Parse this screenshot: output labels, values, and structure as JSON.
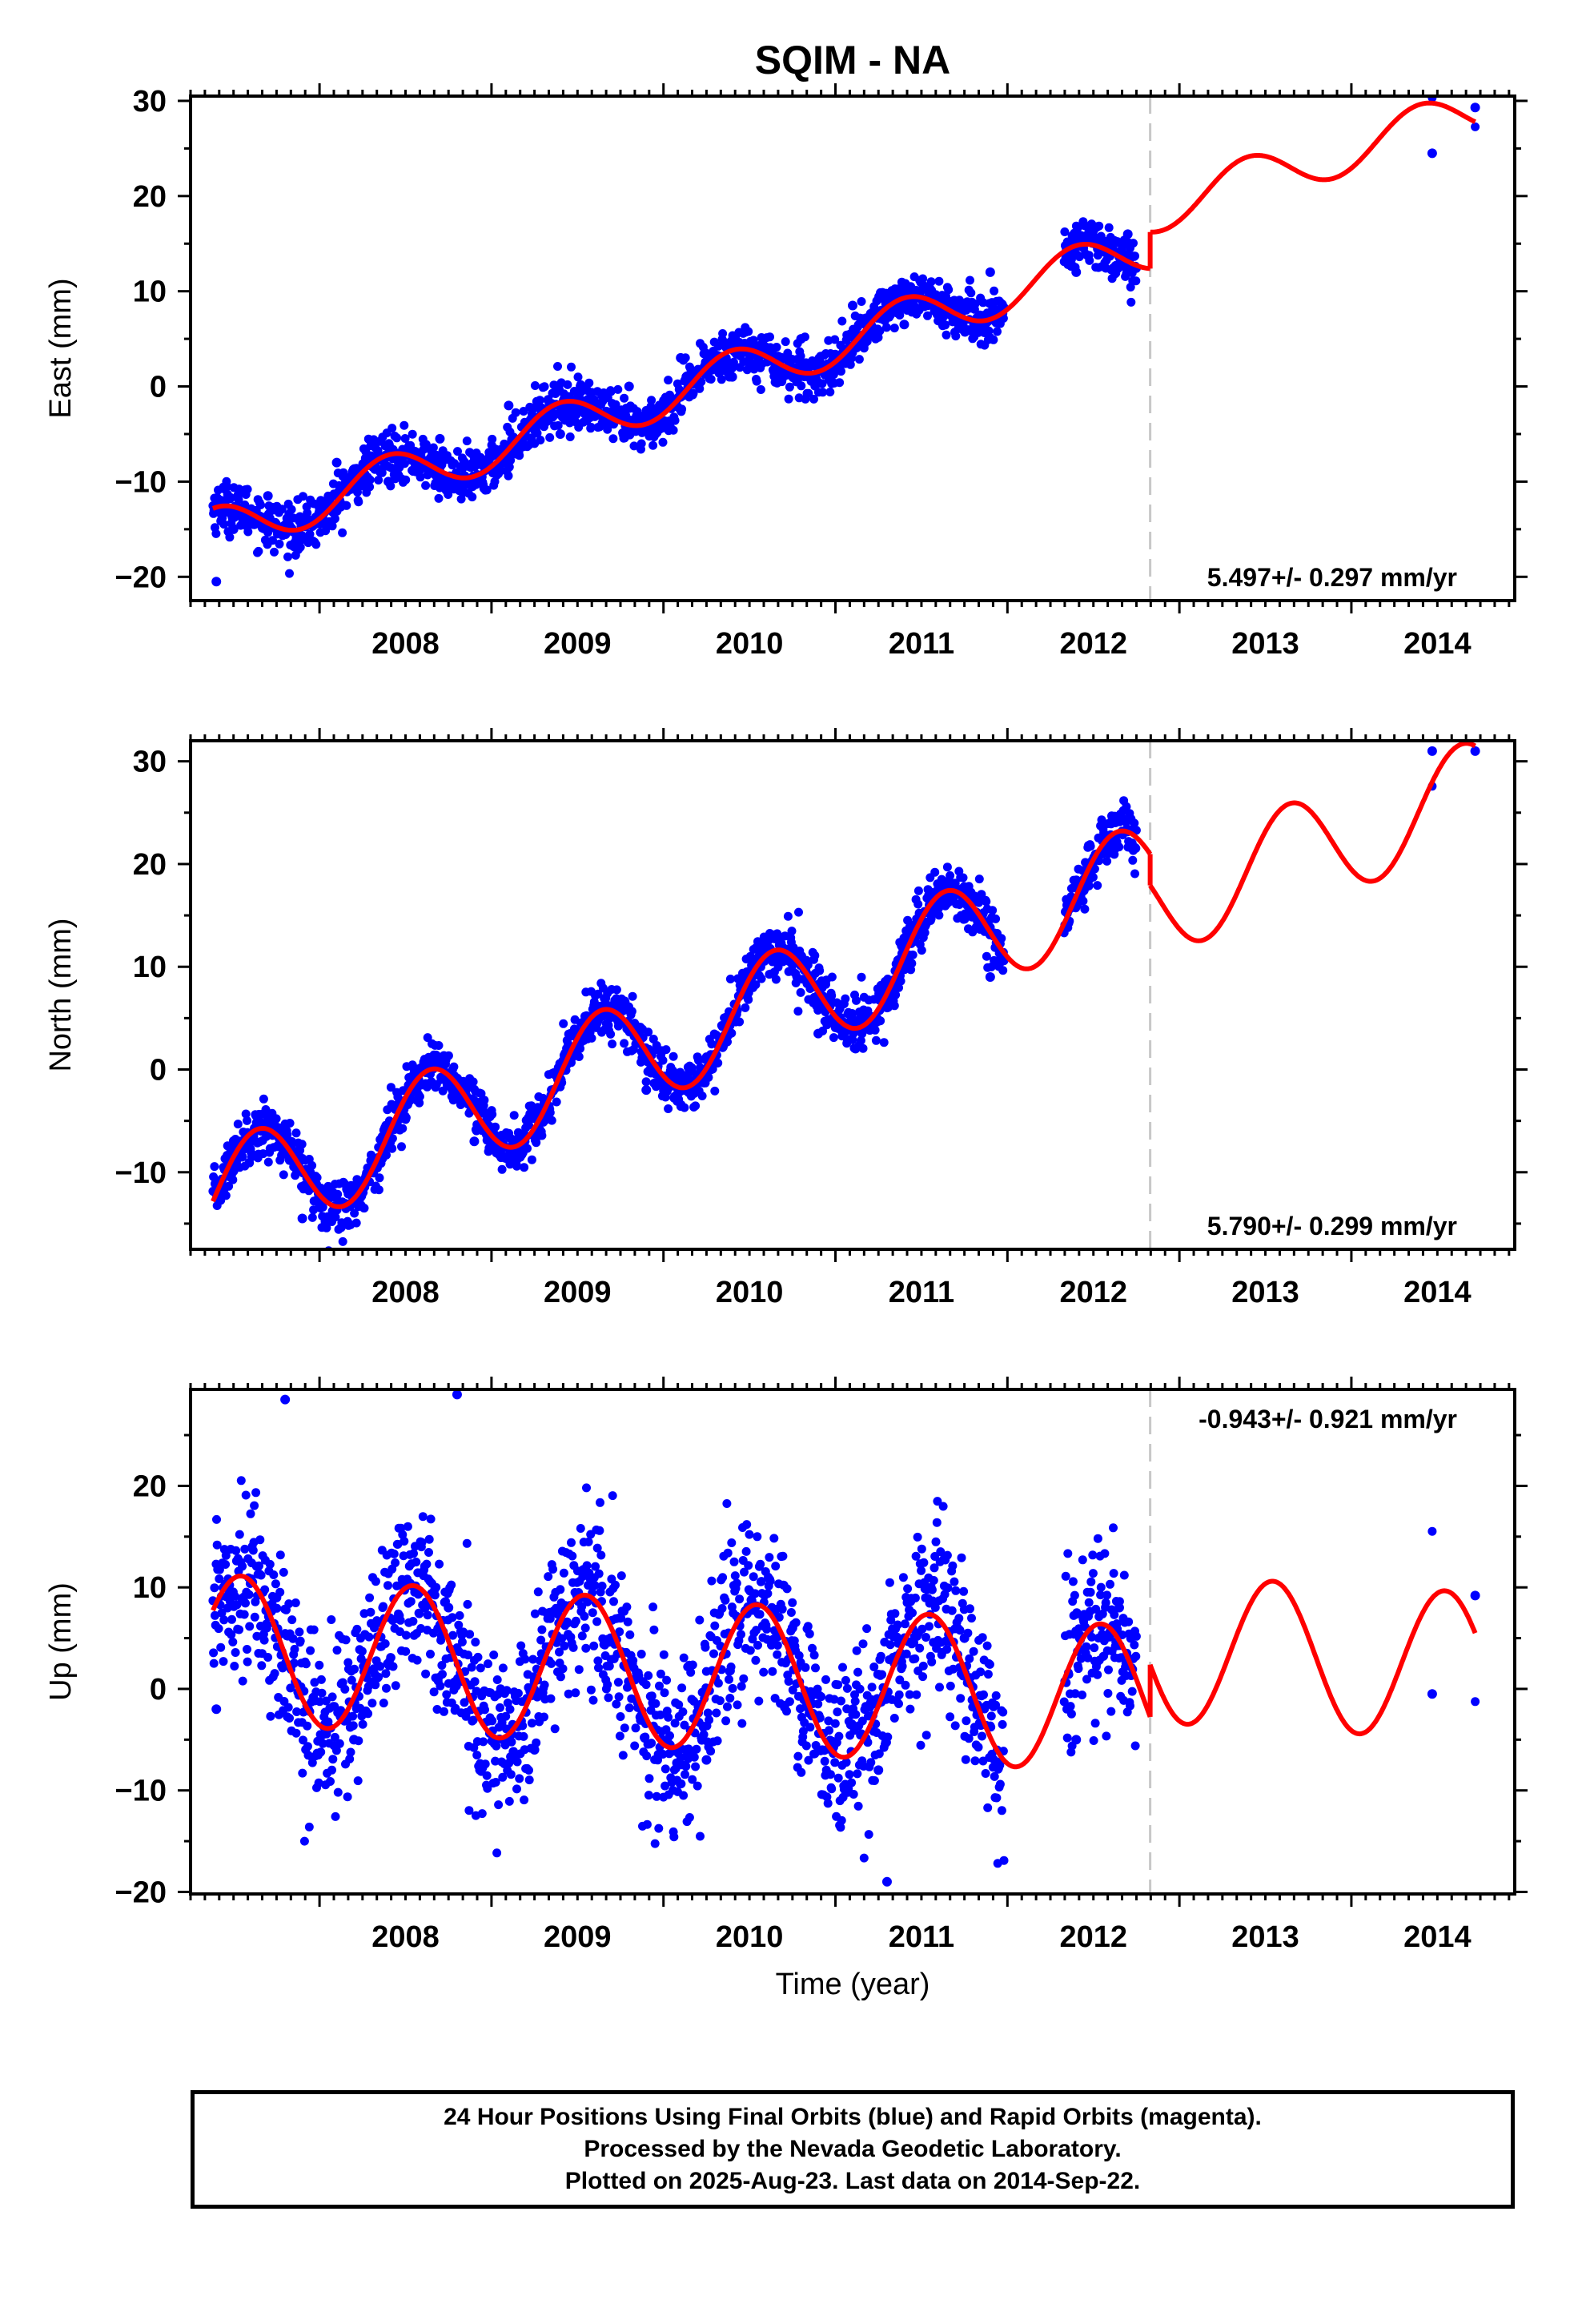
{
  "title": "SQIM - NA",
  "xlabel": "Time (year)",
  "caption": [
    "24 Hour Positions Using Final Orbits (blue) and Rapid Orbits (magenta).",
    "Processed by the Nevada Geodetic Laboratory.",
    "Plotted on 2025-Aug-23. Last data on 2014-Sep-22."
  ],
  "colors": {
    "data": "#0000ff",
    "model": "#ff0000",
    "gap_line": "#c8c8c8",
    "axis": "#000000"
  },
  "chart_data": [
    {
      "type": "scatter",
      "component": "east",
      "ylabel": "East (mm)",
      "rate_text": "5.497+/- 0.297 mm/yr",
      "rate_position": "bottom-right",
      "xlim": [
        2007.25,
        2014.95
      ],
      "ylim": [
        -22.5,
        30.5
      ],
      "xticks": [
        2008,
        2009,
        2010,
        2011,
        2012,
        2013,
        2014
      ],
      "yticks": [
        -20,
        -10,
        0,
        10,
        20,
        30
      ],
      "gap_marker_x": 2012.83,
      "data_spans": [
        [
          2007.38,
          2011.98
        ],
        [
          2012.33,
          2012.75
        ],
        [
          2014.47,
          2014.47
        ],
        [
          2014.72,
          2014.72
        ]
      ],
      "model": {
        "before": {
          "x0": 2007.38,
          "x1": 2012.83,
          "offset": -15.3,
          "rate": 5.497,
          "sin": 1.5,
          "cos": -2.0
        },
        "after": {
          "x0": 2012.83,
          "x1": 2014.72,
          "offset": 18.5,
          "rate": 5.497,
          "sin": 1.5,
          "cos": -2.0
        }
      },
      "points": [
        {
          "x": 2007.4,
          "y": -20.5
        },
        {
          "x": 2007.5,
          "y": -15.0
        },
        {
          "x": 2007.7,
          "y": -11.5
        },
        {
          "x": 2008.1,
          "y": -8.0
        },
        {
          "x": 2008.4,
          "y": -10.0
        },
        {
          "x": 2008.7,
          "y": -5.5
        },
        {
          "x": 2009.1,
          "y": -2.0
        },
        {
          "x": 2009.4,
          "y": -5.0
        },
        {
          "x": 2009.8,
          "y": 0.0
        },
        {
          "x": 2010.1,
          "y": 3.0
        },
        {
          "x": 2010.4,
          "y": 1.0
        },
        {
          "x": 2010.8,
          "y": 5.0
        },
        {
          "x": 2011.1,
          "y": 8.5
        },
        {
          "x": 2011.4,
          "y": 6.5
        },
        {
          "x": 2011.9,
          "y": 12.0
        },
        {
          "x": 2012.4,
          "y": 12.0
        },
        {
          "x": 2012.7,
          "y": 16.0
        },
        {
          "x": 2014.47,
          "y": 24.5
        },
        {
          "x": 2014.72,
          "y": 29.3
        }
      ]
    },
    {
      "type": "scatter",
      "component": "north",
      "ylabel": "North (mm)",
      "rate_text": "5.790+/- 0.299 mm/yr",
      "rate_position": "bottom-right",
      "xlim": [
        2007.25,
        2014.95
      ],
      "ylim": [
        -17.5,
        32.0
      ],
      "xticks": [
        2008,
        2009,
        2010,
        2011,
        2012,
        2013,
        2014
      ],
      "yticks": [
        -10,
        0,
        10,
        20,
        30
      ],
      "gap_marker_x": 2012.83,
      "data_spans": [
        [
          2007.38,
          2011.98
        ],
        [
          2012.33,
          2012.75
        ],
        [
          2014.47,
          2014.47
        ],
        [
          2014.72,
          2014.72
        ]
      ],
      "model": {
        "before": {
          "x0": 2007.38,
          "x1": 2012.83,
          "offset": -12.5,
          "rate": 5.79,
          "sin": -4.0,
          "cos": -3.3
        },
        "after": {
          "x0": 2012.83,
          "x1": 2014.72,
          "offset": 16.0,
          "rate": 5.79,
          "sin": -4.0,
          "cos": -3.3
        }
      },
      "points": [
        {
          "x": 2007.4,
          "y": -12.0
        },
        {
          "x": 2007.55,
          "y": -8.5
        },
        {
          "x": 2007.9,
          "y": -14.5
        },
        {
          "x": 2008.5,
          "y": -3.0
        },
        {
          "x": 2008.9,
          "y": -7.0
        },
        {
          "x": 2009.5,
          "y": 3.0
        },
        {
          "x": 2009.9,
          "y": -2.0
        },
        {
          "x": 2010.5,
          "y": 9.0
        },
        {
          "x": 2010.9,
          "y": 3.5
        },
        {
          "x": 2011.5,
          "y": 15.0
        },
        {
          "x": 2011.9,
          "y": 9.0
        },
        {
          "x": 2012.55,
          "y": 21.0
        },
        {
          "x": 2014.47,
          "y": 31.0
        },
        {
          "x": 2014.72,
          "y": 31.0
        }
      ]
    },
    {
      "type": "scatter",
      "component": "up",
      "ylabel": "Up (mm)",
      "rate_text": "-0.943+/- 0.921 mm/yr",
      "rate_position": "top-right",
      "xlim": [
        2007.25,
        2014.95
      ],
      "ylim": [
        -20.2,
        29.5
      ],
      "xticks": [
        2008,
        2009,
        2010,
        2011,
        2012,
        2013,
        2014
      ],
      "yticks": [
        -20,
        -10,
        0,
        10,
        20
      ],
      "gap_marker_x": 2012.83,
      "data_spans": [
        [
          2007.38,
          2011.98
        ],
        [
          2012.33,
          2012.75
        ],
        [
          2014.47,
          2014.47
        ],
        [
          2014.72,
          2014.72
        ]
      ],
      "model": {
        "before": {
          "x0": 2007.38,
          "x1": 2012.83,
          "offset": 4.0,
          "rate": -0.943,
          "sin": -2.0,
          "cos": -7.0
        },
        "after": {
          "x0": 2012.83,
          "x1": 2014.72,
          "offset": 4.0,
          "rate": -0.943,
          "sin": -2.0,
          "cos": -7.0
        }
      },
      "points": [
        {
          "x": 2007.4,
          "y": -2.0
        },
        {
          "x": 2007.75,
          "y": 9.0
        },
        {
          "x": 2007.8,
          "y": 28.5
        },
        {
          "x": 2008.2,
          "y": -5.0
        },
        {
          "x": 2008.75,
          "y": 8.0
        },
        {
          "x": 2008.8,
          "y": 29.0
        },
        {
          "x": 2009.25,
          "y": -6.0
        },
        {
          "x": 2009.75,
          "y": 7.0
        },
        {
          "x": 2010.25,
          "y": -7.0
        },
        {
          "x": 2010.75,
          "y": 6.0
        },
        {
          "x": 2011.25,
          "y": -8.0
        },
        {
          "x": 2011.3,
          "y": -19.0
        },
        {
          "x": 2011.75,
          "y": 5.0
        },
        {
          "x": 2012.4,
          "y": -5.0
        },
        {
          "x": 2012.65,
          "y": 8.0
        },
        {
          "x": 2014.47,
          "y": -0.5
        },
        {
          "x": 2014.72,
          "y": 9.2
        }
      ]
    }
  ]
}
